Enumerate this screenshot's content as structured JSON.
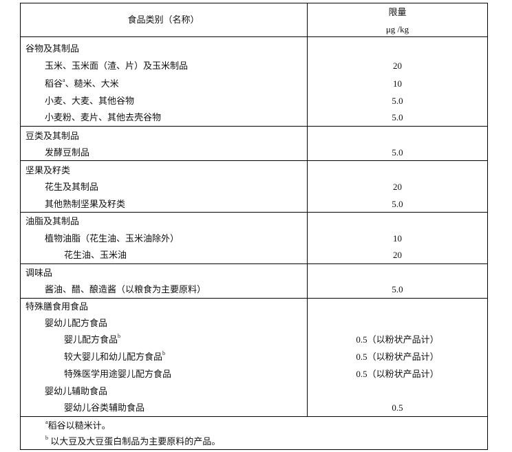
{
  "header": {
    "category_label": "食品类别（名称）",
    "limit_label": "限量",
    "unit_label": "μg /kg"
  },
  "rows": [
    {
      "name": "谷物及其制品",
      "level": 0,
      "value": ""
    },
    {
      "name": "玉米、玉米面（渣、片）及玉米制品",
      "level": 1,
      "value": "20"
    },
    {
      "name": "稻谷",
      "sup": "a",
      "suffix": "、糙米、大米",
      "level": 1,
      "value": "10"
    },
    {
      "name": "小麦、大麦、其他谷物",
      "level": 1,
      "value": "5.0"
    },
    {
      "name": "小麦粉、麦片、其他去壳谷物",
      "level": 1,
      "value": "5.0",
      "section_end": true
    },
    {
      "name": "豆类及其制品",
      "level": 0,
      "value": ""
    },
    {
      "name": "发酵豆制品",
      "level": 1,
      "value": "5.0",
      "section_end": true
    },
    {
      "name": "坚果及籽类",
      "level": 0,
      "value": ""
    },
    {
      "name": "花生及其制品",
      "level": 1,
      "value": "20"
    },
    {
      "name": "其他熟制坚果及籽类",
      "level": 1,
      "value": "5.0",
      "section_end": true
    },
    {
      "name": "油脂及其制品",
      "level": 0,
      "value": ""
    },
    {
      "name": "植物油脂（花生油、玉米油除外）",
      "level": 1,
      "value": "10"
    },
    {
      "name": "花生油、玉米油",
      "level": 2,
      "value": "20",
      "section_end": true
    },
    {
      "name": "调味品",
      "level": 0,
      "value": ""
    },
    {
      "name": "酱油、醋、酿造酱（以粮食为主要原料）",
      "level": 1,
      "value": "5.0",
      "section_end": true
    },
    {
      "name": "特殊膳食用食品",
      "level": 0,
      "value": ""
    },
    {
      "name": "婴幼儿配方食品",
      "level": 1,
      "value": ""
    },
    {
      "name": "婴儿配方食品",
      "sup": "b",
      "level": 2,
      "value": "0.5（以粉状产品计）"
    },
    {
      "name": "较大婴儿和幼儿配方食品",
      "sup": "b",
      "level": 2,
      "value": "0.5（以粉状产品计）"
    },
    {
      "name": "特殊医学用途婴儿配方食品",
      "level": 2,
      "value": "0.5（以粉状产品计）"
    },
    {
      "name": "婴幼儿辅助食品",
      "level": 1,
      "value": ""
    },
    {
      "name": "婴幼儿谷类辅助食品",
      "level": 2,
      "value": "0.5",
      "section_end": true
    }
  ],
  "footnotes": [
    {
      "mark": "a",
      "text": "稻谷以糙米计。"
    },
    {
      "mark": "b",
      "text": " 以大豆及大豆蛋白制品为主要原料的产品。"
    }
  ]
}
